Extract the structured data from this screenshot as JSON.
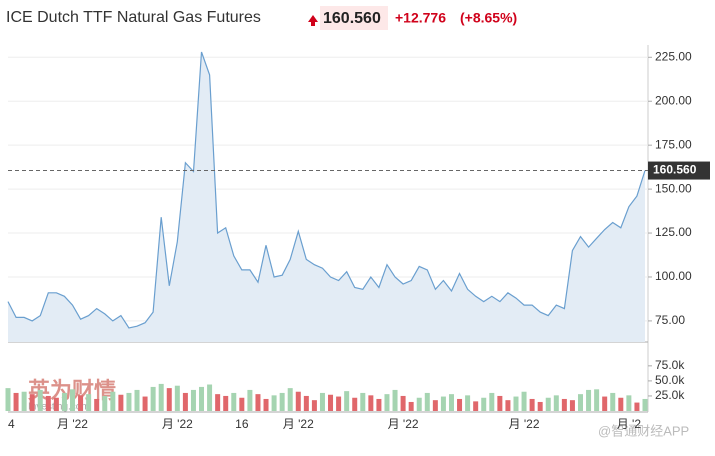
{
  "header": {
    "price": {
      "value": 160.56,
      "label": "160.560"
    },
    "change": "+12.776",
    "change_percent": "(+8.65%)"
  },
  "watermarks": [
    "英为财情",
    "Investing.com",
    "@智通财经APP"
  ],
  "chart_data": [
    {
      "type": "area",
      "title": "ICE Dutch TTF Natural Gas Futures",
      "color": "#6a9fcf",
      "fill": "#e3ecf5",
      "values": [
        86,
        77,
        77,
        75,
        78,
        91,
        91,
        89,
        84,
        76,
        78,
        82,
        79,
        75,
        78,
        71,
        72,
        74,
        80,
        134,
        95,
        120,
        165,
        160,
        228,
        215,
        125,
        128,
        112,
        104,
        104,
        97,
        118,
        100,
        101,
        110,
        126,
        110,
        107,
        105,
        100,
        98,
        103,
        94,
        93,
        100,
        94,
        107,
        100,
        96,
        98,
        106,
        104,
        93,
        98,
        92,
        102,
        93,
        89,
        86,
        89,
        86,
        91,
        88,
        84,
        84,
        80,
        78,
        84,
        82,
        115,
        123,
        117,
        122,
        127,
        131,
        128,
        140,
        146,
        160.56
      ],
      "last_value": {
        "value": 160.56,
        "label": "160.560"
      },
      "ylim": [
        63,
        232
      ],
      "yticks": [
        {
          "value": 75,
          "label": "75.00"
        },
        {
          "value": 100,
          "label": "100.00"
        },
        {
          "value": 125,
          "label": "125.00"
        },
        {
          "value": 150,
          "label": "150.00"
        },
        {
          "value": 175,
          "label": "175.00"
        },
        {
          "value": 200,
          "label": "200.00"
        },
        {
          "value": 225,
          "label": "225.00"
        }
      ],
      "grid": true
    },
    {
      "type": "bar",
      "up_color": "#a5d4b1",
      "down_color": "#e0676b",
      "categories": [
        "4",
        null,
        null,
        null,
        null,
        null,
        null,
        null,
        "月 '22",
        null,
        null,
        null,
        null,
        null,
        null,
        null,
        null,
        null,
        null,
        null,
        null,
        "月 '22",
        null,
        null,
        null,
        null,
        null,
        null,
        null,
        "16",
        null,
        null,
        null,
        null,
        null,
        null,
        "月 '22",
        null,
        null,
        null,
        null,
        null,
        null,
        null,
        null,
        null,
        null,
        null,
        null,
        "月 '22",
        null,
        null,
        null,
        null,
        null,
        null,
        null,
        null,
        null,
        null,
        null,
        null,
        null,
        null,
        "月 '22",
        null,
        null,
        null,
        null,
        null,
        null,
        null,
        null,
        null,
        null,
        null,
        null,
        "月 '2",
        null,
        null
      ],
      "values": [
        38000,
        30000,
        32000,
        28000,
        35000,
        25000,
        22000,
        30000,
        36000,
        26000,
        28000,
        20000,
        25000,
        32000,
        27000,
        30000,
        35000,
        24000,
        40000,
        45000,
        38000,
        42000,
        30000,
        35000,
        40000,
        44000,
        28000,
        25000,
        30000,
        22000,
        35000,
        28000,
        20000,
        26000,
        30000,
        38000,
        32000,
        25000,
        18000,
        30000,
        27000,
        24000,
        33000,
        22000,
        30000,
        26000,
        20000,
        28000,
        35000,
        25000,
        15000,
        22000,
        30000,
        18000,
        24000,
        28000,
        20000,
        26000,
        16000,
        22000,
        30000,
        25000,
        18000,
        24000,
        32000,
        20000,
        15000,
        22000,
        26000,
        20000,
        18000,
        28000,
        35000,
        36000,
        24000,
        30000,
        22000,
        26000,
        14000,
        20000
      ],
      "ylim": [
        0,
        93000
      ],
      "yticks": [
        {
          "value": 25000,
          "label": "25.0k"
        },
        {
          "value": 50000,
          "label": "50.0k"
        },
        {
          "value": 75000,
          "label": "75.0k"
        }
      ]
    }
  ]
}
